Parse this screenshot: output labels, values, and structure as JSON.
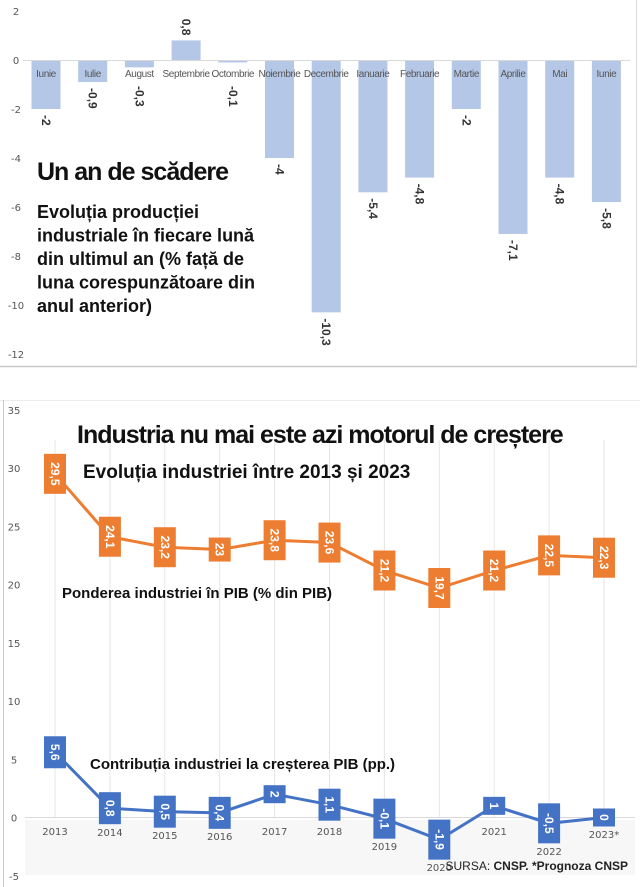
{
  "chart_data": [
    {
      "type": "bar",
      "title": "Un an de scădere",
      "subtitle_lines": [
        "Evoluția producției",
        "industriale în fiecare lună",
        "din ultimul an (% față de",
        "luna corespunzătoare din",
        "anul anterior)"
      ],
      "xlabel": "",
      "ylabel": "",
      "categories": [
        "Iunie",
        "Iulie",
        "August",
        "Septembrie",
        "Octombrie",
        "Noiembrie",
        "Decembrie",
        "Ianuarie",
        "Februarie",
        "Martie",
        "Aprilie",
        "Mai",
        "Iunie"
      ],
      "values": [
        -2,
        -0.9,
        -0.3,
        0.8,
        -0.1,
        -4,
        -10.3,
        -5.4,
        -4.8,
        -2,
        -7.1,
        -4.8,
        -5.8
      ],
      "value_labels": [
        "-2",
        "-0,9",
        "-0,3",
        "0,8",
        "-0,1",
        "-4",
        "-10,3",
        "-5,4",
        "-4,8",
        "-2",
        "-7,1",
        "-4,8",
        "-5,8"
      ],
      "ylim": [
        -12,
        2
      ],
      "yticks": [
        2,
        0,
        -2,
        -4,
        -6,
        -8,
        -10,
        -12
      ],
      "ytick_labels": [
        "2",
        "0",
        "-2",
        "-4",
        "-6",
        "-8",
        "-10",
        "-12"
      ],
      "grid": false,
      "colors": {
        "bar": "#B4C7E7"
      }
    },
    {
      "type": "line",
      "title": "Industria nu mai este azi motorul de creștere",
      "subtitle": "Evoluția industriei între 2013 și 2023",
      "xlabel": "",
      "ylabel": "",
      "x": [
        "2013",
        "2014",
        "2015",
        "2016",
        "2017",
        "2018",
        "2019",
        "2020",
        "2021",
        "2022",
        "2023*"
      ],
      "series": [
        {
          "name": "Ponderea industriei în PIB (% din PIB)",
          "values": [
            29.5,
            24.1,
            23.2,
            23,
            23.8,
            23.6,
            21.2,
            19.7,
            21.2,
            22.5,
            22.3
          ],
          "labels": [
            "29,5",
            "24,1",
            "23,2",
            "23",
            "23,8",
            "23,6",
            "21,2",
            "19,7",
            "21,2",
            "22,5",
            "22,3"
          ],
          "color": "#ED7D31"
        },
        {
          "name": "Contribuția industriei la creșterea PIB (pp.)",
          "values": [
            5.6,
            0.8,
            0.5,
            0.4,
            2,
            1.1,
            -0.1,
            -1.9,
            1,
            -0.5,
            0
          ],
          "labels": [
            "5,6",
            "0,8",
            "0,5",
            "0,4",
            "2",
            "1,1",
            "-0,1",
            "-1,9",
            "1",
            "-0,5",
            "0"
          ],
          "color": "#4472C4"
        }
      ],
      "ylim": [
        -5,
        35
      ],
      "yticks": [
        35,
        30,
        25,
        20,
        15,
        10,
        5,
        0,
        -5
      ],
      "ytick_labels": [
        "35",
        "30",
        "25",
        "20",
        "15",
        "10",
        "5",
        "0",
        "-5"
      ],
      "grid": "vertical",
      "source": {
        "prefix": "SURSA: ",
        "text": "CNSP. *Prognoza CNSP"
      }
    }
  ]
}
